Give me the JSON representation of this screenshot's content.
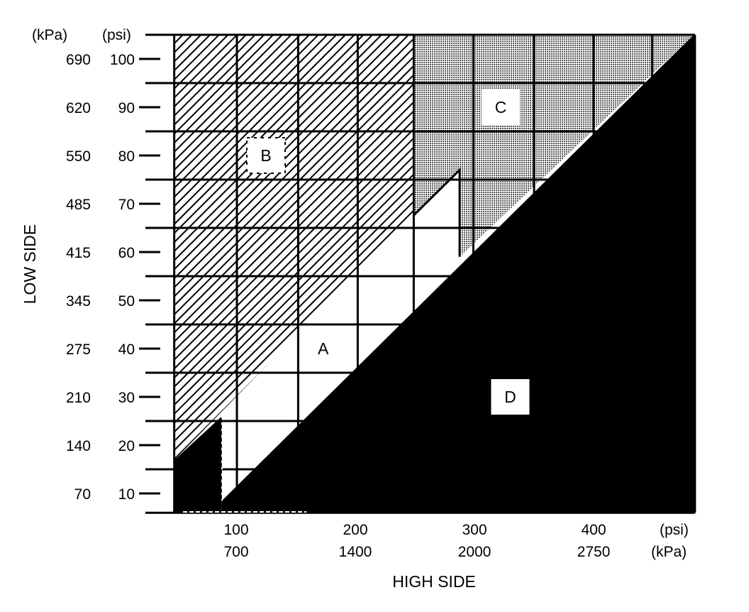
{
  "chart_data": {
    "type": "area",
    "title": "",
    "xlabel": "HIGH SIDE",
    "ylabel": "LOW SIDE",
    "y_headers": {
      "kpa": "(kPa)",
      "psi": "(psi)"
    },
    "x_units": {
      "psi": "(psi)",
      "kpa": "(kPa)"
    },
    "xlim_psi": [
      48,
      485
    ],
    "ylim_psi": [
      6,
      105
    ],
    "x_ticks": [
      {
        "psi": 100,
        "psi_label": "100",
        "kpa_label": "700"
      },
      {
        "psi": 200,
        "psi_label": "200",
        "kpa_label": "1400"
      },
      {
        "psi": 300,
        "psi_label": "300",
        "kpa_label": "2000"
      },
      {
        "psi": 400,
        "psi_label": "400",
        "kpa_label": "2750"
      }
    ],
    "y_ticks": [
      {
        "psi": 100,
        "psi_label": "100",
        "kpa_label": "690"
      },
      {
        "psi": 90,
        "psi_label": "90",
        "kpa_label": "620"
      },
      {
        "psi": 80,
        "psi_label": "80",
        "kpa_label": "550"
      },
      {
        "psi": 70,
        "psi_label": "70",
        "kpa_label": "485"
      },
      {
        "psi": 60,
        "psi_label": "60",
        "kpa_label": "415"
      },
      {
        "psi": 50,
        "psi_label": "50",
        "kpa_label": "345"
      },
      {
        "psi": 40,
        "psi_label": "40",
        "kpa_label": "275"
      },
      {
        "psi": 30,
        "psi_label": "30",
        "kpa_label": "210"
      },
      {
        "psi": 20,
        "psi_label": "20",
        "kpa_label": "140"
      },
      {
        "psi": 10,
        "psi_label": "10",
        "kpa_label": "70"
      }
    ],
    "grid_x_psi": [
      48,
      100.6,
      152,
      202,
      249,
      299,
      350,
      400,
      449,
      485
    ],
    "grid_y_psi": [
      6,
      15,
      25,
      35,
      45,
      55,
      65,
      75,
      85,
      95,
      105
    ],
    "regions": [
      {
        "label": "A",
        "fill": "white",
        "label_at": [
          173,
          40
        ],
        "polygon": [
          [
            48,
            16.9
          ],
          [
            249,
            67.6
          ],
          [
            287.5,
            77
          ],
          [
            287.5,
            59
          ],
          [
            88,
            8.5
          ],
          [
            88,
            26
          ]
        ]
      },
      {
        "label": "B",
        "fill": "hatch",
        "label_at": [
          125,
          80
        ],
        "polygon": [
          [
            48,
            105
          ],
          [
            249,
            105
          ],
          [
            249,
            67.6
          ],
          [
            48,
            16.9
          ]
        ]
      },
      {
        "label": "C",
        "fill": "dots",
        "label_at": [
          322,
          90
        ],
        "polygon": [
          [
            249,
            105
          ],
          [
            484,
            105
          ],
          [
            287.5,
            59
          ],
          [
            287.5,
            77
          ],
          [
            249,
            67.6
          ]
        ]
      },
      {
        "label": "D",
        "fill": "black",
        "label_at": [
          330,
          30
        ],
        "polygon": [
          [
            88,
            8.5
          ],
          [
            484,
            105
          ],
          [
            485,
            105
          ],
          [
            485,
            6
          ],
          [
            88,
            6
          ]
        ]
      }
    ],
    "extra_black_region": {
      "polygon": [
        [
          48,
          6
        ],
        [
          48,
          16.9
        ],
        [
          88,
          26
        ],
        [
          88,
          6
        ]
      ]
    },
    "boundary_line_psi": [
      [
        249,
        67.6
      ],
      [
        287.5,
        77
      ],
      [
        287.5,
        59
      ]
    ]
  }
}
